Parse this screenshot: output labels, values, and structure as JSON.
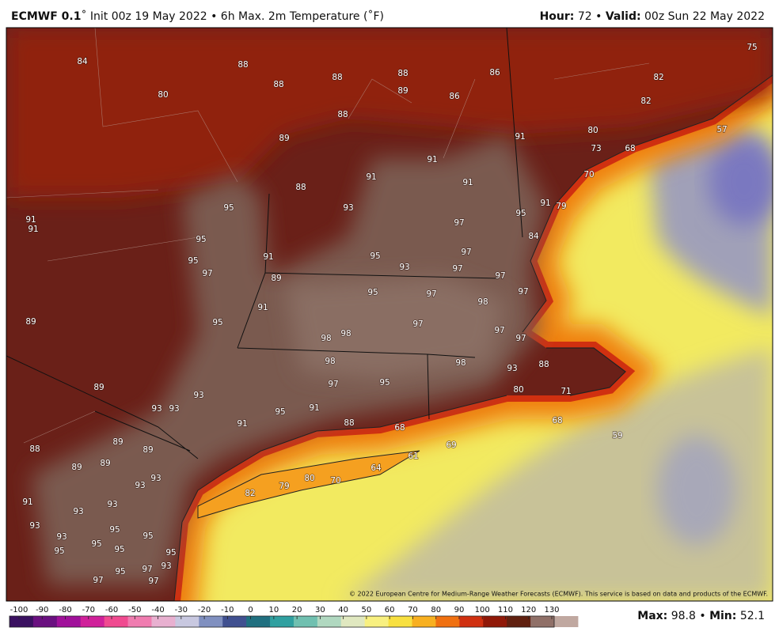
{
  "header": {
    "model": "ECMWF 0.1",
    "details": "˚ Init 00z 19 May 2022 • 6h Max. 2m Temperature (˚F)",
    "hour_label": "Hour:",
    "hour": 72,
    "separator": "•",
    "valid_label": "Valid:",
    "valid": "00z Sun 22 May 2022"
  },
  "map_labels": [
    84,
    80,
    88,
    88,
    88,
    88,
    89,
    86,
    86,
    88,
    89,
    91,
    80,
    73,
    68,
    75,
    82,
    82,
    57,
    91,
    91,
    91,
    70,
    88,
    93,
    95,
    95,
    91,
    79,
    91,
    91,
    95,
    97,
    84,
    95,
    91,
    95,
    93,
    97,
    97,
    97,
    89,
    97,
    95,
    97,
    97,
    91,
    98,
    89,
    95,
    97,
    98,
    98,
    97,
    97,
    98,
    98,
    93,
    88,
    97,
    95,
    89,
    93,
    80,
    71,
    93,
    93,
    95,
    91,
    88,
    91,
    68,
    59,
    89,
    88,
    89,
    89,
    89,
    79,
    80,
    70,
    82,
    93,
    93,
    91,
    93,
    93,
    95,
    93,
    95,
    93,
    95,
    95,
    95,
    95,
    97,
    93,
    97,
    97,
    95,
    64,
    61,
    68,
    69
  ],
  "copyright": "© 2022 European Centre for Medium-Range Weather Forecasts (ECMWF). This service is based on data and products of the ECMWF.",
  "colorbar": {
    "ticks": [
      -100,
      -90,
      -80,
      -70,
      -60,
      -50,
      -40,
      -30,
      -20,
      -10,
      0,
      10,
      20,
      30,
      40,
      50,
      60,
      70,
      80,
      90,
      100,
      110,
      120,
      130
    ],
    "colors": [
      "#3a1060",
      "#6a1080",
      "#a0109a",
      "#d0209a",
      "#f04a90",
      "#f07cb0",
      "#e8b0d0",
      "#c8c8e0",
      "#8090c0",
      "#405090",
      "#207080",
      "#30a0a0",
      "#70c0b0",
      "#b0d8c0",
      "#e0e8c0",
      "#f8f080",
      "#f8e040",
      "#f8b020",
      "#f07010",
      "#d03010",
      "#901808",
      "#602010",
      "#907068",
      "#c0a8a0"
    ]
  },
  "stats": {
    "max_label": "Max:",
    "max": 98.8,
    "separator": "•",
    "min_label": "Min:",
    "min": 52.1
  }
}
